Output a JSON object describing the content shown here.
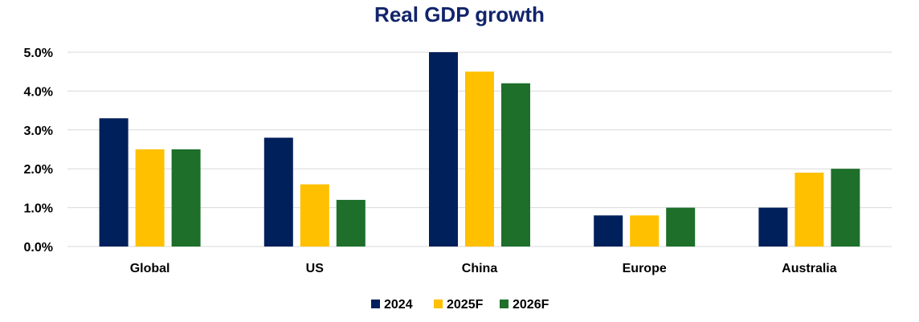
{
  "chart_data": {
    "type": "bar",
    "title": "Real GDP growth",
    "categories": [
      "Global",
      "US",
      "China",
      "Europe",
      "Australia"
    ],
    "series": [
      {
        "name": "2024",
        "color": "#00205b",
        "values": [
          3.3,
          2.8,
          5.0,
          0.8,
          1.0
        ]
      },
      {
        "name": "2025F",
        "color": "#ffc000",
        "values": [
          2.5,
          1.6,
          4.5,
          0.8,
          1.9
        ]
      },
      {
        "name": "2026F",
        "color": "#1d6f2a",
        "values": [
          2.5,
          1.2,
          4.2,
          1.0,
          2.0
        ]
      }
    ],
    "yticks": [
      "0.0%",
      "1.0%",
      "2.0%",
      "3.0%",
      "4.0%",
      "5.0%"
    ],
    "ylim": [
      0,
      5
    ],
    "xlabel": "",
    "ylabel": "",
    "grid": true,
    "legend_position": "bottom-center"
  }
}
